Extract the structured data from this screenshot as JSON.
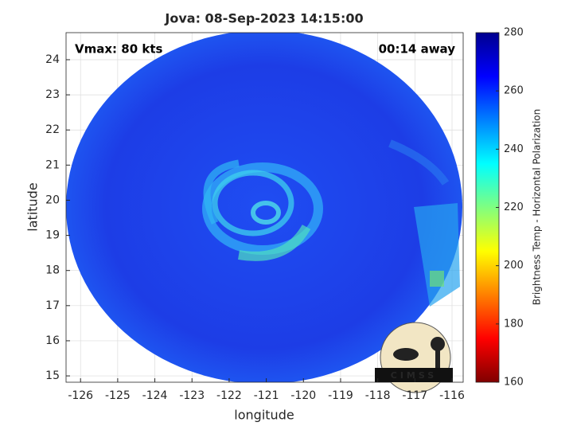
{
  "chart_data": {
    "type": "image",
    "title": "Jova: 08-Sep-2023 14:15:00",
    "xlabel": "longitude",
    "ylabel": "latitude",
    "xlim": [
      -126.39,
      -115.7
    ],
    "ylim": [
      14.82,
      24.77
    ],
    "xticks": [
      -126,
      -125,
      -124,
      -123,
      -122,
      -121,
      -120,
      -119,
      -118,
      -117,
      -116
    ],
    "yticks": [
      15,
      16,
      17,
      18,
      19,
      20,
      21,
      22,
      23,
      24
    ],
    "grid": true,
    "annotations": [
      "Vmax: 80 kts",
      "00:14 away"
    ],
    "logo": "CIMSS",
    "colorbar": {
      "label": "Brightness Temp - Horizontal Polarization",
      "clim": [
        160,
        280
      ],
      "ticks": [
        160,
        180,
        200,
        220,
        240,
        260,
        280
      ],
      "colormap": "jet_r"
    }
  }
}
